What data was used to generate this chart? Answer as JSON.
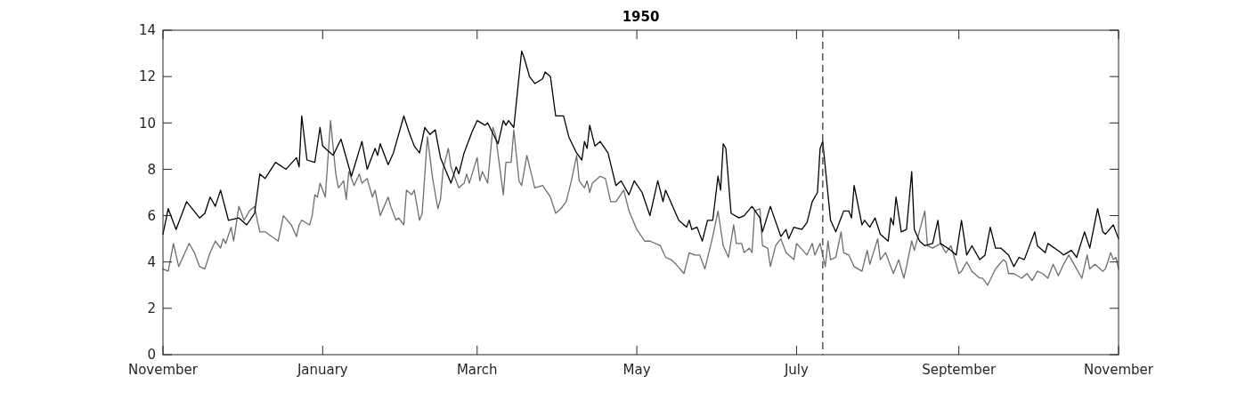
{
  "chart_data": {
    "type": "line",
    "title": "1950",
    "xlim": [
      "1949-11-01",
      "1950-11-01"
    ],
    "xticks": [
      {
        "value": "1949-11-01",
        "label": "November"
      },
      {
        "value": "1950-01-01",
        "label": "January"
      },
      {
        "value": "1950-03-01",
        "label": "March"
      },
      {
        "value": "1950-05-01",
        "label": "May"
      },
      {
        "value": "1950-07-01",
        "label": "July"
      },
      {
        "value": "1950-09-01",
        "label": "September"
      },
      {
        "value": "1950-11-01",
        "label": "November"
      }
    ],
    "ylim": [
      0,
      14
    ],
    "yticks": [
      0,
      2,
      4,
      6,
      8,
      10,
      12,
      14
    ],
    "grid": false,
    "marker": "none",
    "line_style": "solid",
    "ref_lines": [
      {
        "axis": "x",
        "value": "1950-07-11",
        "color": "#555555",
        "line_style": "dashed"
      }
    ],
    "series": [
      {
        "color": "#6e6e6e",
        "x": [
          "1949-11-01",
          "1949-11-03",
          "1949-11-05",
          "1949-11-07",
          "1949-11-11",
          "1949-11-13",
          "1949-11-15",
          "1949-11-17",
          "1949-11-19",
          "1949-11-21",
          "1949-11-23",
          "1949-11-24",
          "1949-11-25",
          "1949-11-27",
          "1949-11-28",
          "1949-11-30",
          "1949-12-02",
          "1949-12-04",
          "1949-12-06",
          "1949-12-07",
          "1949-12-08",
          "1949-12-10",
          "1949-12-15",
          "1949-12-17",
          "1949-12-20",
          "1949-12-22",
          "1949-12-23",
          "1949-12-24",
          "1949-12-27",
          "1949-12-28",
          "1949-12-29",
          "1949-12-30",
          "1949-12-31",
          "1950-01-02",
          "1950-01-04",
          "1950-01-06",
          "1950-01-07",
          "1950-01-09",
          "1950-01-10",
          "1950-01-11",
          "1950-01-13",
          "1950-01-15",
          "1950-01-16",
          "1950-01-18",
          "1950-01-20",
          "1950-01-21",
          "1950-01-23",
          "1950-01-26",
          "1950-01-27",
          "1950-01-29",
          "1950-01-30",
          "1950-02-01",
          "1950-02-02",
          "1950-02-04",
          "1950-02-05",
          "1950-02-07",
          "1950-02-08",
          "1950-02-10",
          "1950-02-12",
          "1950-02-14",
          "1950-02-15",
          "1950-02-16",
          "1950-02-18",
          "1950-02-19",
          "1950-02-22",
          "1950-02-24",
          "1950-02-25",
          "1950-02-26",
          "1950-03-01",
          "1950-03-02",
          "1950-03-03",
          "1950-03-05",
          "1950-03-07",
          "1950-03-08",
          "1950-03-11",
          "1950-03-12",
          "1950-03-14",
          "1950-03-15",
          "1950-03-17",
          "1950-03-18",
          "1950-03-20",
          "1950-03-23",
          "1950-03-26",
          "1950-03-29",
          "1950-03-31",
          "1950-04-02",
          "1950-04-04",
          "1950-04-06",
          "1950-04-08",
          "1950-04-09",
          "1950-04-11",
          "1950-04-12",
          "1950-04-13",
          "1950-04-14",
          "1950-04-17",
          "1950-04-19",
          "1950-04-21",
          "1950-04-23",
          "1950-04-26",
          "1950-04-28",
          "1950-05-01",
          "1950-05-04",
          "1950-05-06",
          "1950-05-10",
          "1950-05-12",
          "1950-05-14",
          "1950-05-16",
          "1950-05-19",
          "1950-05-21",
          "1950-05-23",
          "1950-05-25",
          "1950-05-27",
          "1950-05-30",
          "1950-06-01",
          "1950-06-03",
          "1950-06-05",
          "1950-06-07",
          "1950-06-08",
          "1950-06-10",
          "1950-06-11",
          "1950-06-13",
          "1950-06-14",
          "1950-06-15",
          "1950-06-17",
          "1950-06-18",
          "1950-06-20",
          "1950-06-21",
          "1950-06-23",
          "1950-06-25",
          "1950-06-27",
          "1950-06-30",
          "1950-07-01",
          "1950-07-05",
          "1950-07-07",
          "1950-07-08",
          "1950-07-10",
          "1950-07-12",
          "1950-07-13",
          "1950-07-14",
          "1950-07-16",
          "1950-07-18",
          "1950-07-19",
          "1950-07-21",
          "1950-07-23",
          "1950-07-26",
          "1950-07-28",
          "1950-07-29",
          "1950-08-01",
          "1950-08-02",
          "1950-08-04",
          "1950-08-07",
          "1950-08-09",
          "1950-08-11",
          "1950-08-12",
          "1950-08-14",
          "1950-08-15",
          "1950-08-19",
          "1950-08-20",
          "1950-08-22",
          "1950-08-25",
          "1950-08-27",
          "1950-08-29",
          "1950-09-01",
          "1950-09-02",
          "1950-09-04",
          "1950-09-06",
          "1950-09-09",
          "1950-09-10",
          "1950-09-12",
          "1950-09-15",
          "1950-09-18",
          "1950-09-19",
          "1950-09-20",
          "1950-09-22",
          "1950-09-25",
          "1950-09-27",
          "1950-09-29",
          "1950-10-01",
          "1950-10-03",
          "1950-10-05",
          "1950-10-07",
          "1950-10-09",
          "1950-10-11",
          "1950-10-13",
          "1950-10-15",
          "1950-10-18",
          "1950-10-20",
          "1950-10-21",
          "1950-10-23",
          "1950-10-26",
          "1950-10-27",
          "1950-10-29",
          "1950-10-30",
          "1950-10-31",
          "1950-11-01"
        ],
        "values": [
          3.7,
          3.6,
          4.8,
          3.8,
          4.8,
          4.4,
          3.8,
          3.7,
          4.4,
          4.9,
          4.6,
          5.0,
          4.8,
          5.5,
          4.9,
          6.4,
          5.8,
          6.2,
          6.4,
          5.8,
          5.3,
          5.3,
          4.9,
          6.0,
          5.6,
          5.1,
          5.6,
          5.8,
          5.6,
          6.0,
          6.9,
          6.8,
          7.4,
          6.8,
          10.1,
          7.8,
          7.2,
          7.5,
          6.7,
          7.9,
          7.3,
          7.8,
          7.4,
          7.6,
          6.8,
          7.1,
          6.0,
          6.8,
          6.4,
          5.8,
          5.9,
          5.6,
          7.1,
          6.9,
          7.1,
          5.8,
          6.1,
          9.4,
          7.6,
          6.3,
          6.7,
          8.0,
          8.9,
          8.1,
          7.2,
          7.4,
          7.8,
          7.4,
          8.5,
          7.5,
          7.9,
          7.4,
          9.8,
          9.5,
          6.9,
          8.3,
          8.3,
          9.7,
          7.5,
          7.3,
          8.6,
          7.2,
          7.3,
          6.8,
          6.1,
          6.3,
          6.6,
          7.5,
          8.6,
          7.5,
          7.2,
          7.5,
          7.0,
          7.4,
          7.7,
          7.6,
          6.6,
          6.6,
          7.1,
          6.2,
          5.4,
          4.9,
          4.9,
          4.7,
          4.2,
          4.1,
          3.9,
          3.5,
          4.4,
          4.3,
          4.3,
          3.7,
          5.1,
          6.2,
          4.7,
          4.2,
          5.6,
          4.8,
          4.8,
          4.4,
          4.6,
          4.4,
          6.2,
          6.3,
          4.7,
          4.6,
          3.8,
          4.7,
          5.0,
          4.4,
          4.1,
          4.8,
          4.3,
          4.8,
          4.3,
          4.8,
          3.8,
          4.9,
          4.1,
          4.2,
          5.3,
          4.4,
          4.3,
          3.8,
          3.6,
          4.5,
          3.9,
          5.0,
          4.1,
          4.4,
          3.5,
          4.1,
          3.3,
          3.8,
          4.9,
          4.5,
          6.2,
          4.7,
          4.6,
          4.8,
          4.4,
          4.7,
          3.5,
          3.6,
          4.0,
          3.6,
          3.3,
          3.3,
          3.0,
          3.7,
          4.1,
          4.0,
          3.5,
          3.5,
          3.3,
          3.5,
          3.2,
          3.6,
          3.5,
          3.3,
          3.9,
          3.4,
          3.9,
          4.3,
          3.9,
          3.3,
          4.3,
          3.7,
          3.9,
          3.6,
          3.7,
          4.4,
          4.1,
          4.2,
          3.7
        ]
      },
      {
        "color": "#000000",
        "x": [
          "1949-11-01",
          "1949-11-03",
          "1949-11-06",
          "1949-11-10",
          "1949-11-15",
          "1949-11-17",
          "1949-11-19",
          "1949-11-21",
          "1949-11-23",
          "1949-11-26",
          "1949-11-30",
          "1949-12-03",
          "1949-12-06",
          "1949-12-08",
          "1949-12-10",
          "1949-12-14",
          "1949-12-18",
          "1949-12-22",
          "1949-12-23",
          "1949-12-24",
          "1949-12-26",
          "1949-12-29",
          "1949-12-31",
          "1950-01-01",
          "1950-01-05",
          "1950-01-08",
          "1950-01-12",
          "1950-01-16",
          "1950-01-18",
          "1950-01-21",
          "1950-01-22",
          "1950-01-23",
          "1950-01-26",
          "1950-01-28",
          "1950-02-01",
          "1950-02-03",
          "1950-02-05",
          "1950-02-07",
          "1950-02-09",
          "1950-02-11",
          "1950-02-13",
          "1950-02-15",
          "1950-02-19",
          "1950-02-21",
          "1950-02-22",
          "1950-02-24",
          "1950-02-27",
          "1950-03-01",
          "1950-03-04",
          "1950-03-05",
          "1950-03-09",
          "1950-03-11",
          "1950-03-12",
          "1950-03-13",
          "1950-03-15",
          "1950-03-18",
          "1950-03-19",
          "1950-03-21",
          "1950-03-23",
          "1950-03-26",
          "1950-03-27",
          "1950-03-29",
          "1950-03-31",
          "1950-04-03",
          "1950-04-05",
          "1950-04-08",
          "1950-04-10",
          "1950-04-11",
          "1950-04-12",
          "1950-04-13",
          "1950-04-15",
          "1950-04-17",
          "1950-04-20",
          "1950-04-23",
          "1950-04-25",
          "1950-04-28",
          "1950-04-30",
          "1950-05-03",
          "1950-05-06",
          "1950-05-07",
          "1950-05-09",
          "1950-05-11",
          "1950-05-12",
          "1950-05-17",
          "1950-05-20",
          "1950-05-21",
          "1950-05-22",
          "1950-05-24",
          "1950-05-26",
          "1950-05-28",
          "1950-05-30",
          "1950-06-01",
          "1950-06-02",
          "1950-06-03",
          "1950-06-04",
          "1950-06-06",
          "1950-06-09",
          "1950-06-11",
          "1950-06-14",
          "1950-06-17",
          "1950-06-18",
          "1950-06-21",
          "1950-06-25",
          "1950-06-27",
          "1950-06-28",
          "1950-06-30",
          "1950-07-03",
          "1950-07-05",
          "1950-07-07",
          "1950-07-09",
          "1950-07-10",
          "1950-07-11",
          "1950-07-14",
          "1950-07-16",
          "1950-07-19",
          "1950-07-21",
          "1950-07-22",
          "1950-07-23",
          "1950-07-26",
          "1950-07-27",
          "1950-07-29",
          "1950-07-31",
          "1950-08-02",
          "1950-08-05",
          "1950-08-06",
          "1950-08-07",
          "1950-08-08",
          "1950-08-10",
          "1950-08-12",
          "1950-08-14",
          "1950-08-15",
          "1950-08-17",
          "1950-08-19",
          "1950-08-22",
          "1950-08-24",
          "1950-08-25",
          "1950-08-29",
          "1950-08-31",
          "1950-09-02",
          "1950-09-04",
          "1950-09-06",
          "1950-09-09",
          "1950-09-11",
          "1950-09-13",
          "1950-09-15",
          "1950-09-17",
          "1950-09-20",
          "1950-09-22",
          "1950-09-24",
          "1950-09-26",
          "1950-09-30",
          "1950-10-01",
          "1950-10-04",
          "1950-10-05",
          "1950-10-10",
          "1950-10-11",
          "1950-10-14",
          "1950-10-16",
          "1950-10-19",
          "1950-10-21",
          "1950-10-24",
          "1950-10-26",
          "1950-10-27",
          "1950-10-30",
          "1950-11-01"
        ],
        "values": [
          5.2,
          6.3,
          5.4,
          6.6,
          5.9,
          6.1,
          6.8,
          6.4,
          7.1,
          5.8,
          5.9,
          5.6,
          6.1,
          7.8,
          7.6,
          8.3,
          8.0,
          8.5,
          8.1,
          10.3,
          8.4,
          8.3,
          9.8,
          9.0,
          8.6,
          9.3,
          7.7,
          9.2,
          8.0,
          8.9,
          8.6,
          9.1,
          8.2,
          8.7,
          10.3,
          9.6,
          9.0,
          8.7,
          9.8,
          9.5,
          9.7,
          8.5,
          7.4,
          8.1,
          7.8,
          8.7,
          9.6,
          10.1,
          9.9,
          10.0,
          9.1,
          10.1,
          9.9,
          10.1,
          9.8,
          13.1,
          12.8,
          12.0,
          11.7,
          11.9,
          12.2,
          12.0,
          10.3,
          10.3,
          9.4,
          8.7,
          8.4,
          9.2,
          8.9,
          9.9,
          9.0,
          9.2,
          8.7,
          7.3,
          7.5,
          6.9,
          7.5,
          7.0,
          6.0,
          6.5,
          7.5,
          6.6,
          7.1,
          5.8,
          5.5,
          5.8,
          5.4,
          5.5,
          4.9,
          5.8,
          5.8,
          7.7,
          7.1,
          9.1,
          8.9,
          6.1,
          5.9,
          6.0,
          6.4,
          5.9,
          5.3,
          6.4,
          5.1,
          5.4,
          5.0,
          5.5,
          5.4,
          5.7,
          6.6,
          7.0,
          8.9,
          9.2,
          5.8,
          5.3,
          6.2,
          6.2,
          5.9,
          7.3,
          5.6,
          5.8,
          5.5,
          5.9,
          5.2,
          4.9,
          5.9,
          5.6,
          6.8,
          5.3,
          5.4,
          7.9,
          5.4,
          4.9,
          4.7,
          4.8,
          5.8,
          4.8,
          4.5,
          4.3,
          5.8,
          4.3,
          4.7,
          4.1,
          4.3,
          5.5,
          4.6,
          4.6,
          4.3,
          3.8,
          4.2,
          4.1,
          5.3,
          4.7,
          4.4,
          4.8,
          4.4,
          4.3,
          4.5,
          4.2,
          5.3,
          4.6,
          6.3,
          5.3,
          5.2,
          5.6,
          5.0
        ]
      }
    ]
  }
}
